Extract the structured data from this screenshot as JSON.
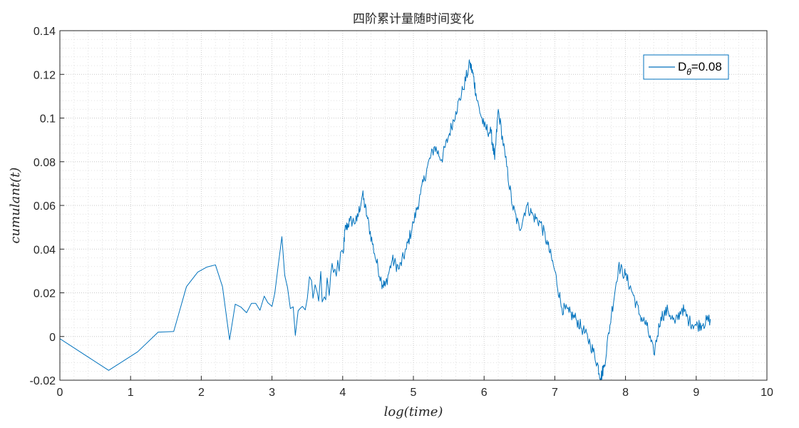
{
  "chart_data": {
    "type": "line",
    "title": "四阶累计量随时间变化",
    "xlabel": "log(time)",
    "ylabel": "cumulant(t)",
    "xlim": [
      0,
      10
    ],
    "ylim": [
      -0.02,
      0.14
    ],
    "x_ticks": [
      0,
      1,
      2,
      3,
      4,
      5,
      6,
      7,
      8,
      9,
      10
    ],
    "x_tick_labels": [
      "0",
      "1",
      "2",
      "3",
      "4",
      "5",
      "6",
      "7",
      "8",
      "9",
      "10"
    ],
    "y_ticks": [
      -0.02,
      0,
      0.02,
      0.04,
      0.06,
      0.08,
      0.1,
      0.12,
      0.14
    ],
    "y_tick_labels": [
      "-0.02",
      "0",
      "0.02",
      "0.04",
      "0.06",
      "0.08",
      "0.1",
      "0.12",
      "0.14"
    ],
    "grid": "on (major and minor, dotted)",
    "legend": {
      "placement": "top-right",
      "entry_main": "D",
      "entry_sub": "θ",
      "entry_rest": "=0.08"
    },
    "series": [
      {
        "name": "Dθ=0.08",
        "color": "#0072BD",
        "x": [
          0,
          0.69,
          1.1,
          1.39,
          1.61,
          1.79,
          1.95,
          2.08,
          2.2,
          2.3,
          2.4,
          2.48,
          2.56,
          2.64,
          2.71,
          2.77,
          2.83,
          2.89,
          2.94,
          3.0,
          3.04,
          3.09,
          3.14,
          3.18,
          3.22,
          3.26,
          3.3,
          3.33,
          3.37,
          3.4,
          3.43,
          3.47,
          3.5,
          3.53,
          3.56,
          3.58,
          3.61,
          3.64,
          3.66,
          3.69,
          3.71,
          3.74,
          3.76,
          3.78,
          3.81,
          3.83,
          3.85,
          3.87,
          3.89,
          3.91,
          3.93,
          3.95,
          3.97,
          3.99,
          4.01,
          4.03,
          4.1,
          4.2,
          4.28,
          4.35,
          4.45,
          4.55,
          4.6,
          4.7,
          4.8,
          4.9,
          5.0,
          5.1,
          5.2,
          5.3,
          5.4,
          5.5,
          5.6,
          5.7,
          5.8,
          5.85,
          5.9,
          6.0,
          6.1,
          6.15,
          6.2,
          6.3,
          6.4,
          6.5,
          6.6,
          6.7,
          6.8,
          6.9,
          7.0,
          7.1,
          7.2,
          7.3,
          7.4,
          7.5,
          7.6,
          7.65,
          7.7,
          7.8,
          7.9,
          8.0,
          8.1,
          8.2,
          8.3,
          8.4,
          8.5,
          8.6,
          8.7,
          8.8,
          8.9,
          9.0,
          9.1,
          9.2
        ],
        "y": [
          -0.001,
          -0.0155,
          -0.007,
          0.002,
          0.0023,
          0.0228,
          0.0295,
          0.0318,
          0.0328,
          0.0228,
          -0.0015,
          0.0148,
          0.0135,
          0.0109,
          0.0152,
          0.0152,
          0.012,
          0.0185,
          0.0155,
          0.0138,
          0.0199,
          0.033,
          0.0457,
          0.028,
          0.0224,
          0.0128,
          0.0136,
          0.0005,
          0.0118,
          0.0129,
          0.0138,
          0.0122,
          0.0175,
          0.0274,
          0.0255,
          0.0175,
          0.0237,
          0.0202,
          0.0162,
          0.0298,
          0.0158,
          0.0182,
          0.0168,
          0.0268,
          0.0188,
          0.0283,
          0.0335,
          0.0293,
          0.0309,
          0.0276,
          0.0349,
          0.0299,
          0.0386,
          0.0395,
          0.0381,
          0.0486,
          0.0528,
          0.0528,
          0.065,
          0.054,
          0.038,
          0.025,
          0.023,
          0.035,
          0.031,
          0.04,
          0.052,
          0.065,
          0.078,
          0.087,
          0.081,
          0.092,
          0.103,
          0.113,
          0.125,
          0.119,
          0.108,
          0.096,
          0.093,
          0.081,
          0.104,
          0.082,
          0.06,
          0.049,
          0.06,
          0.055,
          0.052,
          0.042,
          0.03,
          0.013,
          0.011,
          0.008,
          0.003,
          -0.003,
          -0.012,
          -0.019,
          -0.013,
          0.01,
          0.032,
          0.028,
          0.02,
          0.01,
          0.005,
          -0.008,
          0.009,
          0.012,
          0.006,
          0.013,
          0.007,
          0.005,
          0.006,
          0.008
        ]
      }
    ]
  }
}
